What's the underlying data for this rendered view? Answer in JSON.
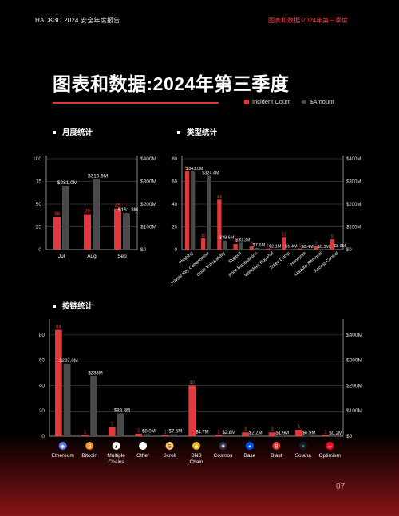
{
  "header": {
    "left": "HACK3D 2024 安全年度报告",
    "right": "图表和数据:2024年第三季度"
  },
  "title": "图表和数据:2024年第三季度",
  "legend": {
    "incident": "Incident Count",
    "amount": "$Amount"
  },
  "colors": {
    "incident": "#e23a3c",
    "amount": "#4a4a4a",
    "grid": "#555555",
    "accent": "#e0393c"
  },
  "page_number": "07",
  "sections": {
    "monthly": "月度统计",
    "type": "类型统计",
    "chain": "按链统计"
  },
  "chart_data": [
    {
      "type": "bar",
      "name": "monthly",
      "categories": [
        "Jul",
        "Aug",
        "Sep"
      ],
      "series": [
        {
          "name": "Incident Count",
          "values": [
            36,
            39,
            45
          ],
          "axis": "left"
        },
        {
          "name": "$Amount",
          "values": [
            281.0,
            310.9,
            161.3
          ],
          "axis": "right"
        }
      ],
      "value_labels": {
        "incident": [
          "36",
          "39",
          "45"
        ],
        "amount": [
          "$281.0M",
          "$310.9M",
          "$161.3M"
        ]
      },
      "ylim_left": [
        0,
        100
      ],
      "yticks_left": [
        "0",
        "25",
        "50",
        "75",
        "100"
      ],
      "ylim_right": [
        0,
        400
      ],
      "yticks_right": [
        "$0",
        "$100M",
        "$200M",
        "$300M",
        "$400M"
      ],
      "grid": true
    },
    {
      "type": "bar",
      "name": "type",
      "categories": [
        "Phishing",
        "Private Key Compromise",
        "Code Vulnerability",
        "Rugpull",
        "Price Manipulation",
        "Withdraw Rug Pull",
        "Token Dump",
        "Honeypot",
        "Liquidity Removal",
        "Access Control"
      ],
      "series": [
        {
          "name": "Incident Count",
          "values": [
            69,
            10,
            44,
            5,
            3,
            1,
            11,
            1,
            3,
            9
          ],
          "axis": "left"
        },
        {
          "name": "$Amount",
          "values": [
            343.0,
            324.4,
            39.6,
            30.3,
            7.6,
            2.1,
            1.4,
            0.4,
            0.3,
            3.6
          ],
          "axis": "right"
        }
      ],
      "value_labels": {
        "incident": [
          "69",
          "10",
          "44",
          "5",
          "3",
          "1",
          "11",
          "1",
          "3",
          "9"
        ],
        "amount": [
          "$343.0M",
          "$324.4M",
          "$39.6M",
          "$30.3M",
          "$7.6M",
          "$2.1M",
          "$1.4M",
          "$0.4M",
          "$0.3M",
          "$3.6M"
        ]
      },
      "ylim_left": [
        0,
        80
      ],
      "yticks_left": [
        "0",
        "20",
        "40",
        "60",
        "80"
      ],
      "ylim_right": [
        0,
        400
      ],
      "yticks_right": [
        "$0",
        "$100M",
        "$200M",
        "$300M",
        "$400M"
      ],
      "grid": true
    },
    {
      "type": "bar",
      "name": "chain",
      "categories": [
        "Ethereum",
        "Bitcoin",
        "Multiple Chains",
        "Other",
        "Scroll",
        "BNB Chain",
        "Cosmos",
        "Base",
        "Blast",
        "Solana",
        "Optimism"
      ],
      "series": [
        {
          "name": "Incident Count",
          "values": [
            84,
            1,
            7,
            2,
            1,
            40,
            1,
            3,
            3,
            5,
            1
          ],
          "axis": "left"
        },
        {
          "name": "$Amount",
          "values": [
            287.0,
            238.0,
            89.8,
            8.0,
            7.6,
            4.7,
            2.8,
            2.2,
            1.9,
            0.9,
            0.2
          ],
          "axis": "right"
        }
      ],
      "value_labels": {
        "incident": [
          "84",
          "1",
          "7",
          "2",
          "1",
          "40",
          "1",
          "3",
          "3",
          "5",
          "1"
        ],
        "amount": [
          "$287.0M",
          "$238M",
          "$89.8M",
          "$8.0M",
          "$7.6M",
          "$4.7M",
          "$2.8M",
          "$2.2M",
          "$1.9M",
          "$0.9M",
          "$0.2M"
        ]
      },
      "icons": [
        "ethereum-icon",
        "bitcoin-icon",
        "multiple-chains-icon",
        "other-icon",
        "scroll-icon",
        "bnb-chain-icon",
        "cosmos-icon",
        "base-icon",
        "blast-icon",
        "solana-icon",
        "optimism-icon"
      ],
      "ylim_left": [
        0,
        90
      ],
      "yticks_left": [
        "0",
        "20",
        "40",
        "60",
        "80"
      ],
      "ylim_right": [
        0,
        450
      ],
      "yticks_right": [
        "$0",
        "$100M",
        "$200M",
        "$300M",
        "$400M"
      ],
      "grid": true
    }
  ]
}
